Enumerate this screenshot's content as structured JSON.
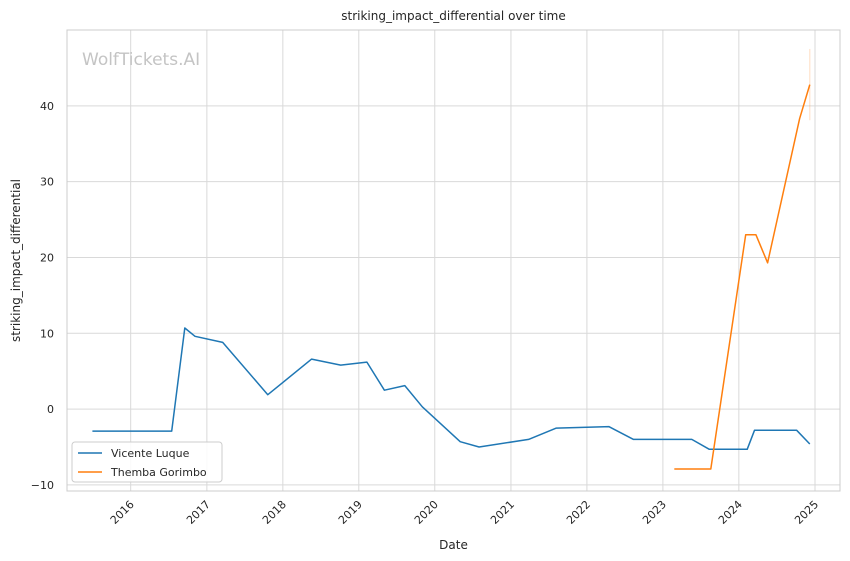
{
  "watermark": "WolfTickets.AI",
  "chart_data": {
    "type": "line",
    "title": "striking_impact_differential over time",
    "xlabel": "Date",
    "ylabel": "striking_impact_differential",
    "xlim": [
      "2015-03-01",
      "2025-05-01"
    ],
    "ylim": [
      -10.8,
      50
    ],
    "x_ticks": [
      "2016-01-01",
      "2017-01-01",
      "2018-01-01",
      "2019-01-01",
      "2020-01-01",
      "2021-01-01",
      "2022-01-01",
      "2023-01-01",
      "2024-01-01",
      "2025-01-01"
    ],
    "x_tick_labels": [
      "2016",
      "2017",
      "2018",
      "2019",
      "2020",
      "2021",
      "2022",
      "2023",
      "2024",
      "2025"
    ],
    "y_ticks": [
      -10,
      0,
      10,
      20,
      30,
      40
    ],
    "y_tick_labels": [
      "−10",
      "0",
      "10",
      "20",
      "30",
      "40"
    ],
    "grid": true,
    "legend_position": "lower-left",
    "series": [
      {
        "name": "Vicente Luque",
        "color": "#1f77b4",
        "points": [
          [
            "2015-07-01",
            -2.9
          ],
          [
            "2016-07-16",
            -2.9
          ],
          [
            "2016-09-17",
            10.7
          ],
          [
            "2016-11-05",
            9.6
          ],
          [
            "2017-03-18",
            8.8
          ],
          [
            "2017-10-21",
            1.9
          ],
          [
            "2018-05-19",
            6.6
          ],
          [
            "2018-10-06",
            5.8
          ],
          [
            "2019-02-09",
            6.2
          ],
          [
            "2019-05-04",
            2.5
          ],
          [
            "2019-08-10",
            3.1
          ],
          [
            "2019-11-02",
            0.3
          ],
          [
            "2020-05-02",
            -4.3
          ],
          [
            "2020-08-01",
            -5.0
          ],
          [
            "2021-03-27",
            -4.0
          ],
          [
            "2021-08-07",
            -2.5
          ],
          [
            "2022-04-16",
            -2.3
          ],
          [
            "2022-08-13",
            -4.0
          ],
          [
            "2023-05-20",
            -4.0
          ],
          [
            "2023-08-12",
            -5.3
          ],
          [
            "2024-02-10",
            -5.3
          ],
          [
            "2024-03-16",
            -2.8
          ],
          [
            "2024-10-05",
            -2.8
          ],
          [
            "2024-12-07",
            -4.6
          ]
        ]
      },
      {
        "name": "Themba Gorimbo",
        "color": "#ff7f0e",
        "points": [
          [
            "2023-02-25",
            -7.9
          ],
          [
            "2023-08-19",
            -7.9
          ],
          [
            "2024-02-03",
            23.0
          ],
          [
            "2024-03-23",
            23.0
          ],
          [
            "2024-05-18",
            19.3
          ],
          [
            "2024-10-19",
            38.3
          ],
          [
            "2024-12-07",
            42.8
          ]
        ]
      }
    ]
  }
}
